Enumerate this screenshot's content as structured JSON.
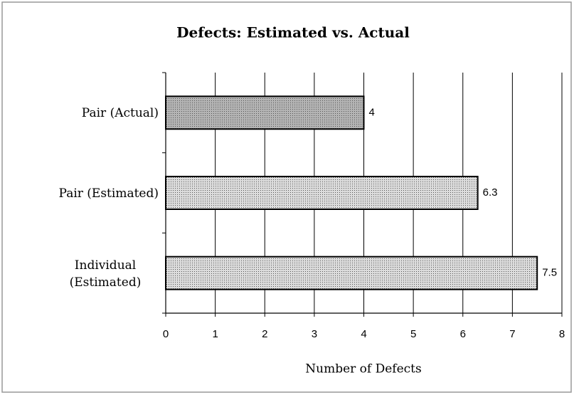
{
  "chart_data": {
    "type": "hbar",
    "title": "Defects:  Estimated vs. Actual",
    "categories": [
      "Pair (Actual)",
      "Pair (Estimated)",
      "Individual (Estimated)"
    ],
    "values": [
      4,
      6.3,
      7.5
    ],
    "colors": [
      "#b4b4b4",
      "#dcdcdc",
      "#dcdcdc"
    ],
    "xlabel": "Number of Defects",
    "xlim": [
      0,
      8
    ],
    "xticks": [
      0,
      1,
      2,
      3,
      4,
      5,
      6,
      7,
      8
    ],
    "grid": true
  }
}
